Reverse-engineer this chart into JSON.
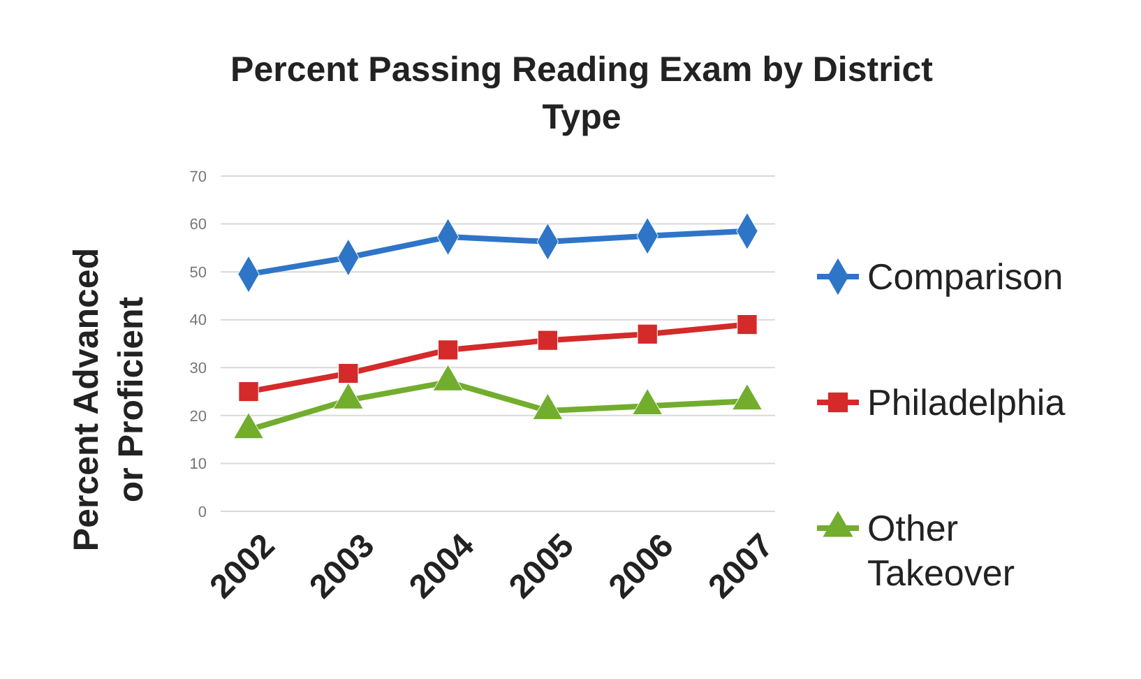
{
  "chart_data": {
    "type": "line",
    "title": "Percent Passing Reading Exam by District Type",
    "ylabel": "Percent Advanced or Proficient",
    "categories": [
      "2002",
      "2003",
      "2004",
      "2005",
      "2006",
      "2007"
    ],
    "ylim": [
      0,
      70
    ],
    "yticks": [
      0,
      10,
      20,
      30,
      40,
      50,
      60,
      70
    ],
    "grid": "y",
    "legend": "right",
    "series": [
      {
        "name": "Comparison",
        "color": "#2e75c8",
        "marker": "diamond",
        "values": [
          49.5,
          53,
          57.3,
          56.3,
          57.5,
          58.5
        ]
      },
      {
        "name": "Philadelphia",
        "color": "#d42a2a",
        "marker": "square",
        "values": [
          25,
          28.8,
          33.7,
          35.7,
          37,
          39
        ]
      },
      {
        "name": "Other Takeover",
        "color": "#72ad2e",
        "marker": "triangle",
        "values": [
          17,
          23.2,
          27,
          21,
          22,
          23
        ]
      }
    ]
  }
}
